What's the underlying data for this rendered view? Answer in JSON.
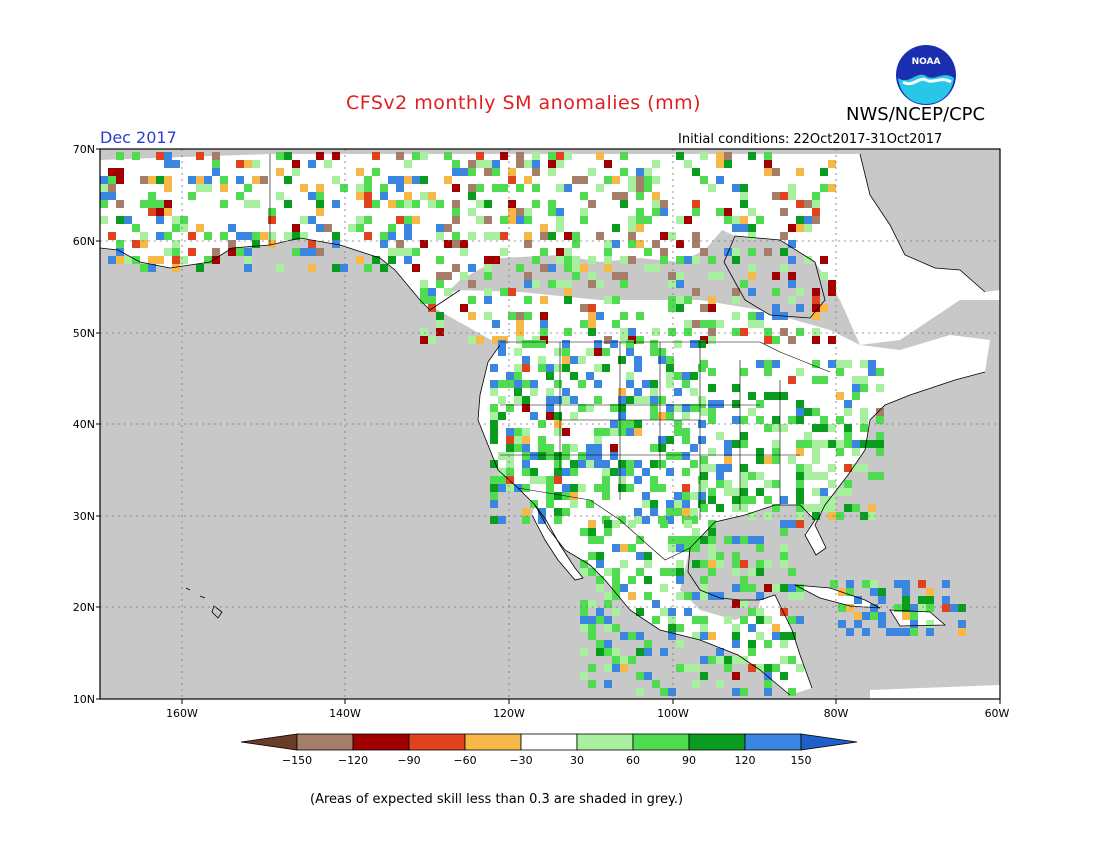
{
  "header": {
    "title": "CFSv2 monthly SM anomalies (mm)",
    "agency": "NWS/NCEP/CPC",
    "month": "Dec 2017",
    "ic_label": "Initial conditions:",
    "ic_range": "22Oct2017-31Oct2017",
    "logo_text": "NOAA"
  },
  "axes": {
    "lat_labels": [
      "70N",
      "60N",
      "50N",
      "40N",
      "30N",
      "20N",
      "10N"
    ],
    "lon_labels": [
      "160W",
      "140W",
      "120W",
      "100W",
      "80W",
      "60W"
    ]
  },
  "legend": {
    "ticks": [
      "-150",
      "-120",
      "-90",
      "-60",
      "-30",
      "30",
      "60",
      "90",
      "120",
      "150"
    ],
    "bins": [
      {
        "range": "< -150",
        "color": "#6b3b2a"
      },
      {
        "range": "-150 to -120",
        "color": "#a57e6a"
      },
      {
        "range": "-120 to -90",
        "color": "#a00000"
      },
      {
        "range": "-90 to -60",
        "color": "#e0421e"
      },
      {
        "range": "-60 to -30",
        "color": "#f8b848"
      },
      {
        "range": "-30 to 30",
        "color": "#ffffff"
      },
      {
        "range": "30 to 60",
        "color": "#a8f0a0"
      },
      {
        "range": "60 to 90",
        "color": "#50dc50"
      },
      {
        "range": "90 to 120",
        "color": "#0a9c1e"
      },
      {
        "range": "120 to 150",
        "color": "#3a86e0"
      },
      {
        "range": "> 150",
        "color": "#1f5fc8"
      }
    ]
  },
  "colors": {
    "low_skill_grey": "#c8c8c8",
    "title_red": "#e02020",
    "month_blue": "#2a3fd0"
  },
  "footnote": "(Areas of expected skill less than 0.3 are shaded in grey.)"
}
